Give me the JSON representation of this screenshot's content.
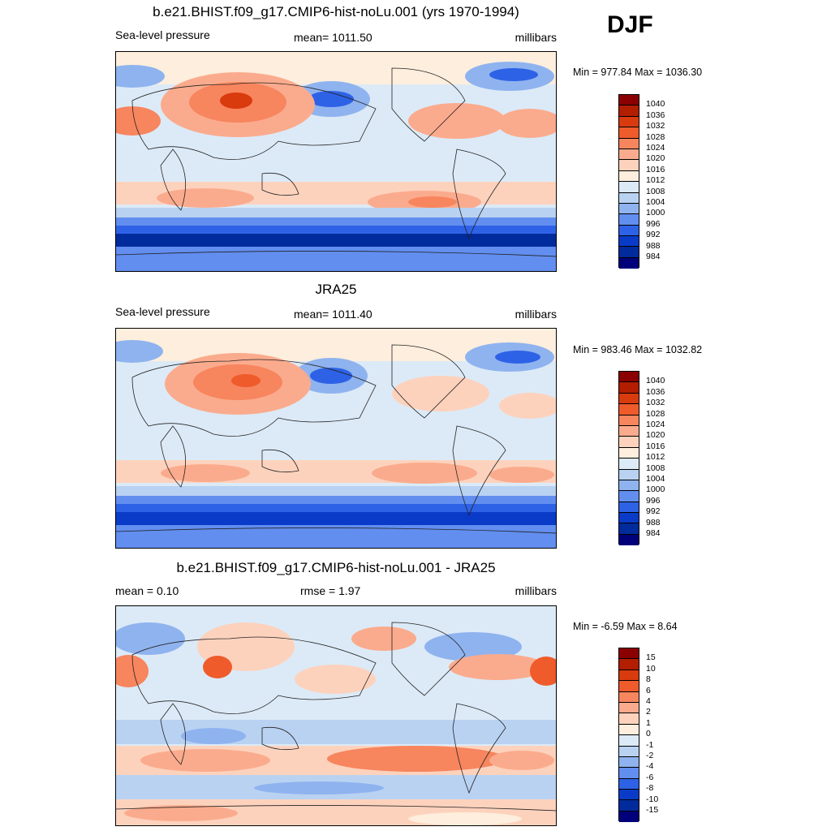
{
  "season": "DJF",
  "panels": [
    {
      "title": "b.e21.BHIST.f09_g17.CMIP6-hist-noLu.001 (yrs 1970-1994)",
      "left_label": "Sea-level pressure",
      "center_label": "mean= 1011.50",
      "right_label": "millibars",
      "minmax": "Min = 977.84 Max = 1036.30"
    },
    {
      "title": "JRA25",
      "left_label": "Sea-level pressure",
      "center_label": "mean= 1011.40",
      "right_label": "millibars",
      "minmax": "Min = 983.46 Max = 1032.82"
    },
    {
      "title": "b.e21.BHIST.f09_g17.CMIP6-hist-noLu.001 - JRA25",
      "left_label": "mean =   0.10",
      "center_label": "rmse =   1.97",
      "right_label": "millibars",
      "minmax": "Min =  -6.59 Max =   8.64"
    }
  ],
  "chart_data": [
    {
      "type": "heatmap",
      "title": "b.e21.BHIST.f09_g17.CMIP6-hist-noLu.001 (yrs 1970-1994)",
      "variable": "Sea-level pressure",
      "units": "millibars",
      "mean": 1011.5,
      "min": 977.84,
      "max": 1036.3,
      "colorbar_labels": [
        "1040",
        "1036",
        "1032",
        "1028",
        "1024",
        "1020",
        "1016",
        "1012",
        "1008",
        "1004",
        "1000",
        "996",
        "992",
        "988",
        "984"
      ],
      "colorbar_colors": [
        "#8b0000",
        "#b31d00",
        "#d93a0e",
        "#ef5b2b",
        "#f7855e",
        "#fbab8d",
        "#fdd2bd",
        "#fdeedd",
        "#dceaf7",
        "#b9d2f2",
        "#8fb3ef",
        "#628ef0",
        "#2e62e6",
        "#0a3bc8",
        "#002b9c",
        "#00007a"
      ]
    },
    {
      "type": "heatmap",
      "title": "JRA25",
      "variable": "Sea-level pressure",
      "units": "millibars",
      "mean": 1011.4,
      "min": 983.46,
      "max": 1032.82,
      "colorbar_labels": [
        "1040",
        "1036",
        "1032",
        "1028",
        "1024",
        "1020",
        "1016",
        "1012",
        "1008",
        "1004",
        "1000",
        "996",
        "992",
        "988",
        "984"
      ],
      "colorbar_colors": [
        "#8b0000",
        "#b31d00",
        "#d93a0e",
        "#ef5b2b",
        "#f7855e",
        "#fbab8d",
        "#fdd2bd",
        "#fdeedd",
        "#dceaf7",
        "#b9d2f2",
        "#8fb3ef",
        "#628ef0",
        "#2e62e6",
        "#0a3bc8",
        "#002b9c",
        "#00007a"
      ]
    },
    {
      "type": "heatmap",
      "title": "b.e21.BHIST.f09_g17.CMIP6-hist-noLu.001 - JRA25",
      "units": "millibars",
      "mean": 0.1,
      "rmse": 1.97,
      "min": -6.59,
      "max": 8.64,
      "colorbar_labels": [
        "15",
        "10",
        "8",
        "6",
        "4",
        "2",
        "1",
        "0",
        "-1",
        "-2",
        "-4",
        "-6",
        "-8",
        "-10",
        "-15"
      ],
      "colorbar_colors": [
        "#8b0000",
        "#b31d00",
        "#d93a0e",
        "#ef5b2b",
        "#f7855e",
        "#fbab8d",
        "#fdd2bd",
        "#fdeedd",
        "#dceaf7",
        "#b9d2f2",
        "#8fb3ef",
        "#628ef0",
        "#2e62e6",
        "#0a3bc8",
        "#002b9c",
        "#00007a"
      ]
    }
  ]
}
